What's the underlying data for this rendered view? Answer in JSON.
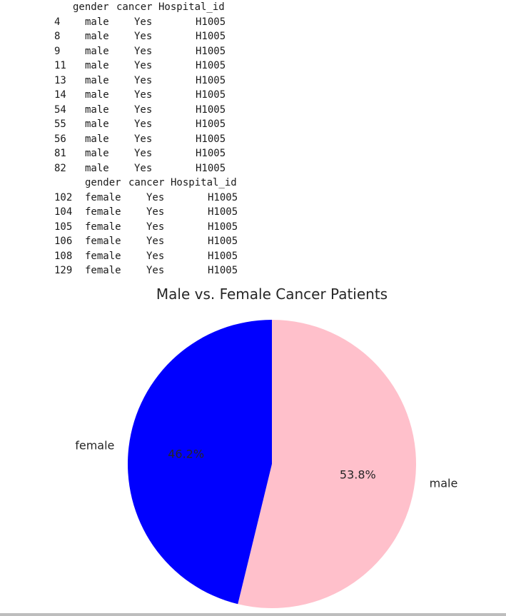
{
  "table_male": {
    "headers": [
      "gender",
      "cancer",
      "Hospital_id"
    ],
    "rows": [
      {
        "index": "4",
        "gender": "male",
        "cancer": "Yes",
        "hospital": "H1005"
      },
      {
        "index": "8",
        "gender": "male",
        "cancer": "Yes",
        "hospital": "H1005"
      },
      {
        "index": "9",
        "gender": "male",
        "cancer": "Yes",
        "hospital": "H1005"
      },
      {
        "index": "11",
        "gender": "male",
        "cancer": "Yes",
        "hospital": "H1005"
      },
      {
        "index": "13",
        "gender": "male",
        "cancer": "Yes",
        "hospital": "H1005"
      },
      {
        "index": "14",
        "gender": "male",
        "cancer": "Yes",
        "hospital": "H1005"
      },
      {
        "index": "54",
        "gender": "male",
        "cancer": "Yes",
        "hospital": "H1005"
      },
      {
        "index": "55",
        "gender": "male",
        "cancer": "Yes",
        "hospital": "H1005"
      },
      {
        "index": "56",
        "gender": "male",
        "cancer": "Yes",
        "hospital": "H1005"
      },
      {
        "index": "81",
        "gender": "male",
        "cancer": "Yes",
        "hospital": "H1005"
      },
      {
        "index": "82",
        "gender": "male",
        "cancer": "Yes",
        "hospital": "H1005"
      }
    ]
  },
  "table_female": {
    "headers": [
      "gender",
      "cancer",
      "Hospital_id"
    ],
    "rows": [
      {
        "index": "102",
        "gender": "female",
        "cancer": "Yes",
        "hospital": "H1005"
      },
      {
        "index": "104",
        "gender": "female",
        "cancer": "Yes",
        "hospital": "H1005"
      },
      {
        "index": "105",
        "gender": "female",
        "cancer": "Yes",
        "hospital": "H1005"
      },
      {
        "index": "106",
        "gender": "female",
        "cancer": "Yes",
        "hospital": "H1005"
      },
      {
        "index": "108",
        "gender": "female",
        "cancer": "Yes",
        "hospital": "H1005"
      },
      {
        "index": "129",
        "gender": "female",
        "cancer": "Yes",
        "hospital": "H1005"
      }
    ]
  },
  "chart_data": {
    "type": "pie",
    "title": "Male vs. Female Cancer Patients",
    "slices": [
      {
        "label": "male",
        "value": 53.8,
        "pct_label": "53.8%",
        "color": "#ffc0cb"
      },
      {
        "label": "female",
        "value": 46.2,
        "pct_label": "46.2%",
        "color": "#0000ff"
      }
    ],
    "start_angle": 90,
    "direction": "clockwise"
  }
}
